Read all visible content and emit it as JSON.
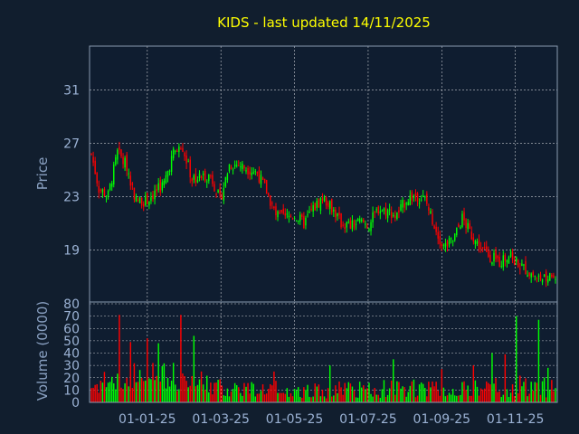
{
  "chart_data": {
    "type": "candlestick",
    "title": "KIDS - last updated 14/11/2025",
    "price_panel": {
      "ylabel": "Price",
      "yticks": [
        19,
        23,
        27,
        31
      ],
      "ylim": [
        15.1,
        34.3
      ],
      "grid": true
    },
    "volume_panel": {
      "ylabel": "Volume (0000)",
      "yticks": [
        0,
        10,
        20,
        30,
        40,
        50,
        60,
        70,
        80
      ],
      "ylim": [
        0,
        80
      ],
      "grid": true
    },
    "x_ticks": [
      "01-01-25",
      "01-03-25",
      "01-05-25",
      "01-07-25",
      "01-09-25",
      "01-11-25"
    ],
    "up_color": "#00ff00",
    "down_color": "#ff0000",
    "background": "#111e2e",
    "panel_background": "#0f1d30",
    "close_anchors": [
      [
        0,
        26.2
      ],
      [
        4,
        23.6
      ],
      [
        9,
        23.1
      ],
      [
        14,
        26.3
      ],
      [
        19,
        25.3
      ],
      [
        24,
        22.7
      ],
      [
        29,
        22.7
      ],
      [
        34,
        23.3
      ],
      [
        39,
        24.0
      ],
      [
        44,
        26.3
      ],
      [
        49,
        26.7
      ],
      [
        54,
        24.3
      ],
      [
        59,
        24.5
      ],
      [
        64,
        24.6
      ],
      [
        69,
        22.7
      ],
      [
        74,
        25.4
      ],
      [
        79,
        25.4
      ],
      [
        84,
        25.1
      ],
      [
        89,
        24.8
      ],
      [
        94,
        23.4
      ],
      [
        99,
        21.6
      ],
      [
        104,
        21.4
      ],
      [
        109,
        21.6
      ],
      [
        114,
        21.0
      ],
      [
        119,
        22.1
      ],
      [
        124,
        22.9
      ],
      [
        129,
        22.2
      ],
      [
        134,
        21.0
      ],
      [
        139,
        20.8
      ],
      [
        144,
        21.1
      ],
      [
        149,
        20.9
      ],
      [
        154,
        22.1
      ],
      [
        159,
        21.9
      ],
      [
        164,
        21.6
      ],
      [
        169,
        22.8
      ],
      [
        174,
        23.1
      ],
      [
        179,
        22.8
      ],
      [
        184,
        20.9
      ],
      [
        189,
        19.2
      ],
      [
        194,
        19.7
      ],
      [
        199,
        21.4
      ],
      [
        204,
        20.1
      ],
      [
        209,
        19.1
      ],
      [
        214,
        18.5
      ],
      [
        219,
        18.1
      ],
      [
        224,
        18.6
      ],
      [
        229,
        18.0
      ],
      [
        234,
        17.4
      ],
      [
        239,
        17.0
      ],
      [
        244,
        16.8
      ],
      [
        249,
        17.1
      ]
    ],
    "volume_anchors": [
      [
        0,
        12
      ],
      [
        8,
        18
      ],
      [
        16,
        14
      ],
      [
        24,
        22
      ],
      [
        32,
        20
      ],
      [
        40,
        18
      ],
      [
        48,
        22
      ],
      [
        56,
        16
      ],
      [
        64,
        14
      ],
      [
        72,
        10
      ],
      [
        80,
        12
      ],
      [
        88,
        10
      ],
      [
        96,
        11
      ],
      [
        104,
        9
      ],
      [
        112,
        8
      ],
      [
        120,
        10
      ],
      [
        128,
        9
      ],
      [
        136,
        11
      ],
      [
        144,
        10
      ],
      [
        152,
        9
      ],
      [
        160,
        12
      ],
      [
        168,
        10
      ],
      [
        176,
        11
      ],
      [
        184,
        10
      ],
      [
        192,
        9
      ],
      [
        200,
        10
      ],
      [
        208,
        11
      ],
      [
        216,
        12
      ],
      [
        224,
        11
      ],
      [
        232,
        13
      ],
      [
        240,
        12
      ],
      [
        249,
        11
      ]
    ],
    "volume_spikes": [
      [
        15,
        71
      ],
      [
        21,
        49
      ],
      [
        30,
        52
      ],
      [
        36,
        48
      ],
      [
        48,
        71
      ],
      [
        55,
        54
      ],
      [
        98,
        25
      ],
      [
        128,
        30
      ],
      [
        162,
        35
      ],
      [
        188,
        27
      ],
      [
        205,
        30
      ],
      [
        215,
        40
      ],
      [
        222,
        39
      ],
      [
        228,
        70
      ],
      [
        240,
        67
      ],
      [
        245,
        28
      ]
    ],
    "bars_total": 250
  }
}
